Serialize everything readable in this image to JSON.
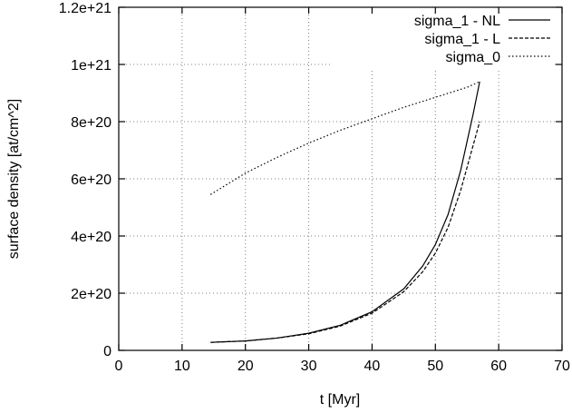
{
  "chart_data": {
    "type": "line",
    "title": "",
    "xlabel": "t [Myr]",
    "ylabel": "surface density [at/cm^2]",
    "xlim": [
      0,
      70
    ],
    "ylim": [
      0,
      1.2e+21
    ],
    "xticks": [
      0,
      10,
      20,
      30,
      40,
      50,
      60,
      70
    ],
    "xtick_labels": [
      "0",
      "10",
      "20",
      "30",
      "40",
      "50",
      "60",
      "70"
    ],
    "yticks": [
      0,
      2e+20,
      4e+20,
      6e+20,
      8e+20,
      1e+21,
      1.2e+21
    ],
    "ytick_labels": [
      "0",
      "2e+20",
      "4e+20",
      "6e+20",
      "8e+20",
      "1e+21",
      "1.2e+21"
    ],
    "grid": true,
    "legend_position": "top-right",
    "series": [
      {
        "name": "sigma_1 - NL",
        "style": "solid",
        "x": [
          14.5,
          20,
          25,
          30,
          35,
          40,
          45,
          48,
          50,
          52,
          54,
          55,
          56,
          57
        ],
        "y": [
          2.8e+19,
          3.3e+19,
          4.3e+19,
          6e+19,
          8.8e+19,
          1.35e+20,
          2.15e+20,
          2.95e+20,
          3.7e+20,
          4.75e+20,
          6.3e+20,
          7.3e+20,
          8.3e+20,
          9.4e+20
        ]
      },
      {
        "name": "sigma_1 - L",
        "style": "dashed",
        "x": [
          14.5,
          20,
          25,
          30,
          35,
          40,
          45,
          48,
          50,
          52,
          54,
          55,
          56,
          57
        ],
        "y": [
          2.8e+19,
          3.3e+19,
          4.3e+19,
          5.8e+19,
          8.5e+19,
          1.3e+20,
          2.05e+20,
          2.75e+20,
          3.4e+20,
          4.3e+20,
          5.6e+20,
          6.4e+20,
          7.2e+20,
          8e+20
        ]
      },
      {
        "name": "sigma_0",
        "style": "dotted",
        "x": [
          14.5,
          20,
          25,
          30,
          35,
          40,
          45,
          50,
          55,
          57
        ],
        "y": [
          5.45e+20,
          6.2e+20,
          6.75e+20,
          7.25e+20,
          7.7e+20,
          8.1e+20,
          8.5e+20,
          8.85e+20,
          9.2e+20,
          9.4e+20
        ]
      }
    ]
  }
}
